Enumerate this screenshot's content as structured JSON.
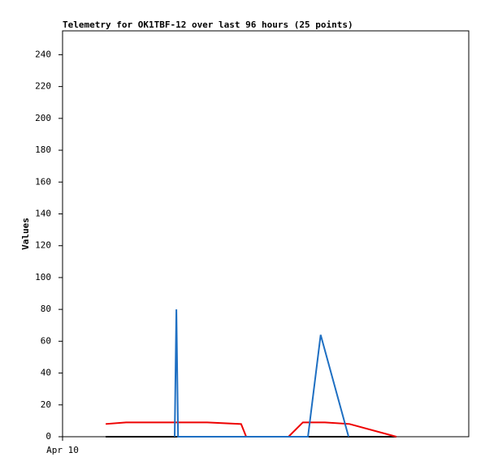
{
  "chart_data": {
    "type": "line",
    "title": "Telemetry for OK1TBF-12 over last 96 hours (25 points)",
    "y_label": "Values",
    "xlim": [
      0,
      96
    ],
    "xticks": [
      {
        "value": 0,
        "label": "Apr 10"
      }
    ],
    "ylim": [
      0,
      255
    ],
    "yticks": [
      0,
      20,
      40,
      60,
      80,
      100,
      120,
      140,
      160,
      180,
      200,
      220,
      240
    ],
    "series": [
      {
        "color": "#000000",
        "x": [
          10.2,
          78.9
        ],
        "values": [
          0,
          0
        ]
      },
      {
        "color": "#ee0000",
        "x": [
          10.2,
          15,
          34.2,
          42.2,
          43.4,
          53.4,
          56.8,
          62,
          67.8,
          78.9
        ],
        "values": [
          8,
          9,
          9,
          8,
          0,
          0,
          9,
          9,
          8,
          0
        ]
      },
      {
        "color": "#1e6fc2",
        "x": [
          26.5,
          26.9,
          27.3,
          58,
          61,
          67.6
        ],
        "values": [
          0,
          80,
          0,
          0,
          64,
          0
        ]
      }
    ]
  }
}
